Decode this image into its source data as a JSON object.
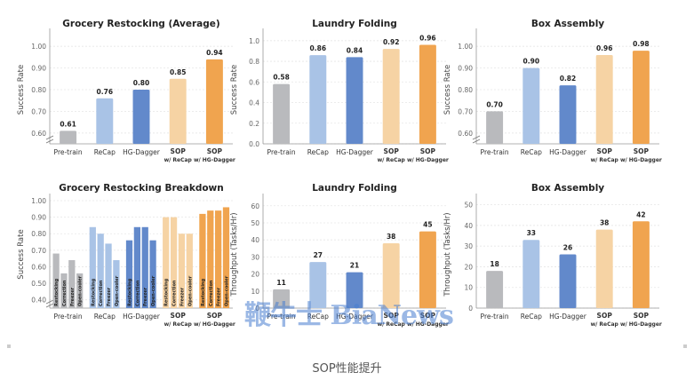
{
  "caption": "SOP性能提升",
  "watermark": "鞭牛士 BiaNews",
  "colors": {
    "pretrain": "#b9babd",
    "recap": "#a9c3e6",
    "hgdagger": "#6289cb",
    "sop_recap": "#f6d3a4",
    "sop_hg": "#f0a44f",
    "grid": "#e6e6e6",
    "axis": "#555555"
  },
  "chart_data": [
    {
      "id": "c1",
      "type": "bar",
      "title": "Grocery Restocking (Average)",
      "ylabel": "Success Rate",
      "ylim": [
        0.55,
        1.05
      ],
      "yticks": [
        "0.60",
        "0.70",
        "0.80",
        "0.90",
        "1.00"
      ],
      "tickvals": [
        0.6,
        0.7,
        0.8,
        0.9,
        1.0
      ],
      "axis_break": true,
      "categories": [
        "Pre-train",
        "ReCap",
        "HG-Dagger",
        "SOP\nw/ ReCap",
        "SOP\nw/ HG-Dagger"
      ],
      "values": [
        0.61,
        0.76,
        0.8,
        0.85,
        0.94
      ],
      "labels": [
        "0.61",
        "0.76",
        "0.80",
        "0.85",
        "0.94"
      ]
    },
    {
      "id": "c2",
      "type": "bar",
      "title": "Laundry Folding",
      "ylabel": "Success Rate",
      "ylim": [
        0.0,
        1.05
      ],
      "yticks": [
        "0.0",
        "0.2",
        "0.4",
        "0.6",
        "0.8",
        "1.0"
      ],
      "tickvals": [
        0.0,
        0.2,
        0.4,
        0.6,
        0.8,
        1.0
      ],
      "axis_break": false,
      "categories": [
        "Pre-train",
        "ReCap",
        "HG-Dagger",
        "SOP\nw/ ReCap",
        "SOP\nw/ HG-Dagger"
      ],
      "values": [
        0.58,
        0.86,
        0.84,
        0.92,
        0.96
      ],
      "labels": [
        "0.58",
        "0.86",
        "0.84",
        "0.92",
        "0.96"
      ]
    },
    {
      "id": "c3",
      "type": "bar",
      "title": "Box Assembly",
      "ylabel": "Success Rate",
      "ylim": [
        0.55,
        1.05
      ],
      "yticks": [
        "0.60",
        "0.70",
        "0.80",
        "0.90",
        "1.00"
      ],
      "tickvals": [
        0.6,
        0.7,
        0.8,
        0.9,
        1.0
      ],
      "axis_break": true,
      "categories": [
        "Pre-train",
        "ReCap",
        "HG-Dagger",
        "SOP\nw/ ReCap",
        "SOP\nw/ HG-Dagger"
      ],
      "values": [
        0.7,
        0.9,
        0.82,
        0.96,
        0.98
      ],
      "labels": [
        "0.70",
        "0.90",
        "0.82",
        "0.96",
        "0.98"
      ]
    },
    {
      "id": "c4",
      "type": "bar",
      "title": "Grocery Restocking Breakdown",
      "ylabel": "Success Rate",
      "ylim": [
        0.35,
        1.0
      ],
      "yticks": [
        "0.40",
        "0.50",
        "0.60",
        "0.70",
        "0.80",
        "0.90",
        "1.00"
      ],
      "tickvals": [
        0.4,
        0.5,
        0.6,
        0.7,
        0.8,
        0.9,
        1.0
      ],
      "axis_break": true,
      "categories": [
        "Pre-train",
        "ReCap",
        "HG-Dagger",
        "SOP\nw/ ReCap",
        "SOP\nw/ HG-Dagger"
      ],
      "subcategories": [
        "Restocking",
        "Correction",
        "Freezer",
        "Open-cooler"
      ],
      "values": [
        [
          0.68,
          0.56,
          0.64,
          0.56
        ],
        [
          0.84,
          0.8,
          0.74,
          0.64
        ],
        [
          0.76,
          0.84,
          0.84,
          0.76
        ],
        [
          0.9,
          0.9,
          0.8,
          0.8
        ],
        [
          0.92,
          0.94,
          0.94,
          0.96
        ]
      ]
    },
    {
      "id": "c5",
      "type": "bar",
      "title": "Laundry Folding",
      "ylabel": "Throughput (Tasks/Hr)",
      "ylim": [
        0,
        63
      ],
      "yticks": [
        "0",
        "10",
        "20",
        "30",
        "40",
        "50",
        "60"
      ],
      "tickvals": [
        0,
        10,
        20,
        30,
        40,
        50,
        60
      ],
      "axis_break": false,
      "categories": [
        "Pre-train",
        "ReCap",
        "HG-Dagger",
        "SOP\nw/ ReCap",
        "SOP\nw/ HG-Dagger"
      ],
      "values": [
        11,
        27,
        21,
        38,
        45
      ],
      "labels": [
        "11",
        "27",
        "21",
        "38",
        "45"
      ]
    },
    {
      "id": "c6",
      "type": "bar",
      "title": "Box Assembly",
      "ylabel": "Throughput (Tasks/Hr)",
      "ylim": [
        0,
        52
      ],
      "yticks": [
        "0",
        "10",
        "20",
        "30",
        "40",
        "50"
      ],
      "tickvals": [
        0,
        10,
        20,
        30,
        40,
        50
      ],
      "axis_break": false,
      "categories": [
        "Pre-train",
        "ReCap",
        "HG-Dagger",
        "SOP\nw/ ReCap",
        "SOP\nw/ HG-Dagger"
      ],
      "values": [
        18,
        33,
        26,
        38,
        42
      ],
      "labels": [
        "18",
        "33",
        "26",
        "38",
        "42"
      ]
    }
  ]
}
